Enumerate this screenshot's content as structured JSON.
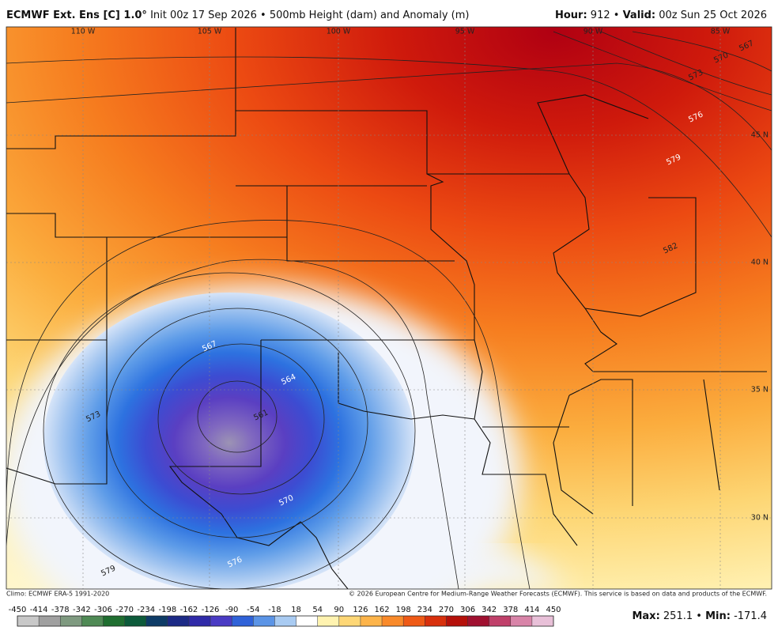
{
  "header": {
    "model": "ECMWF Ext.  Ens [C] 1.0°",
    "description": "Init 00z 17 Sep 2026 • 500mb Height (dam) and Anomaly (m)",
    "hour_label": "Hour:",
    "hour": "912",
    "separator": "•",
    "valid_label": "Valid:",
    "valid": "00z Sun 25 Oct 2026"
  },
  "longitudes": [
    "110 W",
    "105 W",
    "100 W",
    "95 W",
    "90 W",
    "85 W"
  ],
  "latitudes": [
    "45 N",
    "40 N",
    "35 N",
    "30 N"
  ],
  "contour_labels": [
    561,
    564,
    567,
    570,
    573,
    576,
    579,
    582,
    579,
    576,
    573,
    570,
    567
  ],
  "footer": {
    "climo": "Climo: ECMWF ERA-5 1991-2020",
    "copyright": "© 2026 European Centre for Medium-Range Weather Forecasts (ECMWF). This service is based on data and products of the ECMWF."
  },
  "colorbar": {
    "ticks": [
      -450,
      -414,
      -378,
      -342,
      -306,
      -270,
      -234,
      -198,
      -162,
      -126,
      -90,
      -54,
      -18,
      18,
      54,
      90,
      126,
      162,
      198,
      234,
      270,
      306,
      342,
      378,
      414,
      450
    ],
    "colors": [
      "#c8c8c8",
      "#a0a0a0",
      "#7f9a80",
      "#4f8a55",
      "#1f6e30",
      "#0c5a3a",
      "#0d3b66",
      "#1c2a86",
      "#2f2aa8",
      "#4a3bc4",
      "#2f62d8",
      "#5b94e6",
      "#a9cbf2",
      "#ffffff",
      "#fff3b0",
      "#fed776",
      "#fdb44a",
      "#f98a2a",
      "#ef5a16",
      "#d8300c",
      "#b5100a",
      "#a01030",
      "#c0406a",
      "#d884a8",
      "#e8c0d8"
    ]
  },
  "extremes": {
    "max_label": "Max:",
    "max": "251.1",
    "min_label": "Min:",
    "min": "-171.4"
  }
}
